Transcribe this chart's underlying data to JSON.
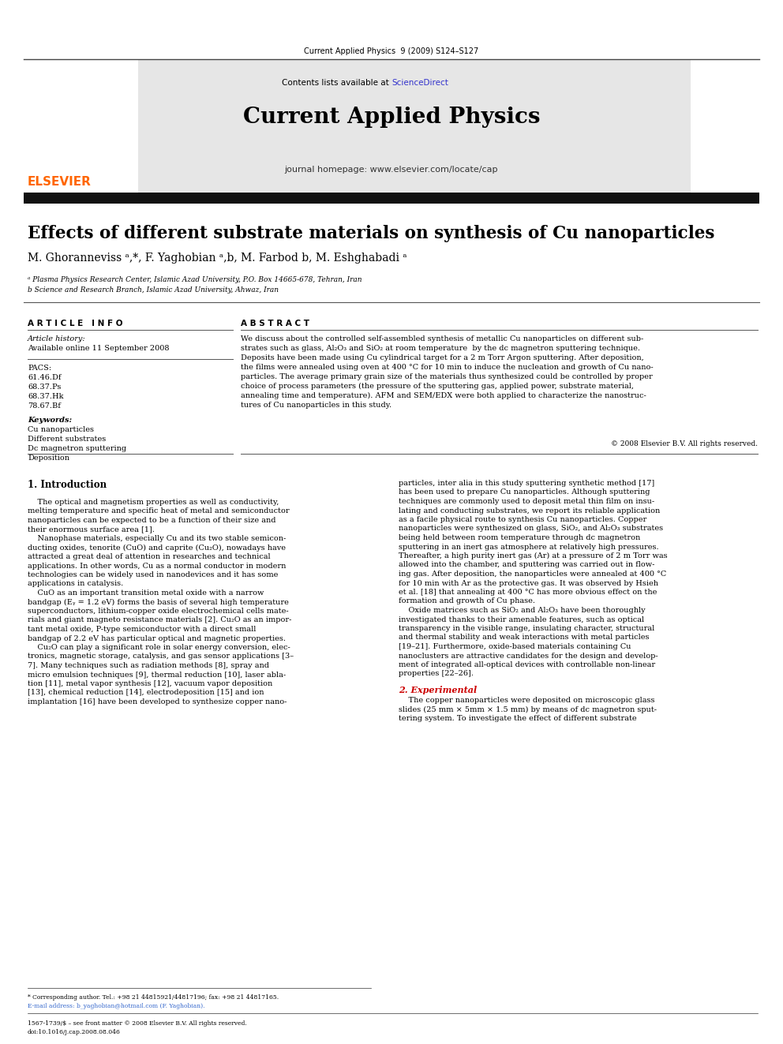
{
  "page_width": 9.92,
  "page_height": 13.23,
  "dpi": 100,
  "background_color": "#ffffff",
  "journal_header_text": "Current Applied Physics  9 (2009) S124–S127",
  "contents_text": "Contents lists available at ",
  "sciencedirect_text": "ScienceDirect",
  "sciencedirect_color": "#3333cc",
  "journal_title": "Current Applied Physics",
  "homepage_text": "journal homepage: www.elsevier.com/locate/cap",
  "article_title": "Effects of different substrate materials on synthesis of Cu nanoparticles",
  "authors": "M. Ghoranneviss ᵃ,*, F. Yaghobian ᵃ,b, M. Farbod b, M. Eshghabadi ᵃ",
  "affil_a": "ᵃ Plasma Physics Research Center, Islamic Azad University, P.O. Box 14665-678, Tehran, Iran",
  "affil_b": "b Science and Research Branch, Islamic Azad University, Ahwaz, Iran",
  "article_info_label": "A R T I C L E   I N F O",
  "abstract_label": "A B S T R A C T",
  "article_history_label": "Article history:",
  "available_online": "Available online 11 September 2008",
  "pacs_label": "PACS:",
  "pacs_codes": [
    "61.46.Df",
    "68.37.Ps",
    "68.37.Hk",
    "78.67.Bf"
  ],
  "keywords_label": "Keywords:",
  "keywords": [
    "Cu nanoparticles",
    "Different substrates",
    "Dc magnetron sputtering",
    "Deposition"
  ],
  "abstract_text": "We discuss about the controlled self-assembled synthesis of metallic Cu nanoparticles on different substrates such as glass, Al₂O₃ and SiO₂ at room temperature  by the dc magnetron sputtering technique. Deposits have been made using Cu cylindrical target for a 2 m Torr Argon sputtering. After deposition, the films were annealed using oven at 400 °C for 10 min to induce the nucleation and growth of Cu nanoparticles. The average primary grain size of the materials thus synthesized could be controlled by proper choice of process parameters (the pressure of the sputtering gas, applied power, substrate material, annealing time and temperature). AFM and SEM/EDX were both applied to characterize the nanostructures of Cu nanoparticles in this study.",
  "copyright_text": "© 2008 Elsevier B.V. All rights reserved.",
  "intro_heading": "1. Introduction",
  "intro_col1_lines": [
    "    The optical and magnetism properties as well as conductivity,",
    "melting temperature and specific heat of metal and semiconductor",
    "nanoparticles can be expected to be a function of their size and",
    "their enormous surface area [1].",
    "    Nanophase materials, especially Cu and its two stable semicon-",
    "ducting oxides, tenorite (CuO) and caprite (Cu₂O), nowadays have",
    "attracted a great deal of attention in researches and technical",
    "applications. In other words, Cu as a normal conductor in modern",
    "technologies can be widely used in nanodevices and it has some",
    "applications in catalysis.",
    "    CuO as an important transition metal oxide with a narrow",
    "bandgap (Eᵧ = 1.2 eV) forms the basis of several high temperature",
    "superconductors, lithium-copper oxide electrochemical cells mate-",
    "rials and giant magneto resistance materials [2]. Cu₂O as an impor-",
    "tant metal oxide, P-type semiconductor with a direct small",
    "bandgap of 2.2 eV has particular optical and magnetic properties.",
    "    Cu₂O can play a significant role in solar energy conversion, elec-",
    "tronics, magnetic storage, catalysis, and gas sensor applications [3–",
    "7]. Many techniques such as radiation methods [8], spray and",
    "micro emulsion techniques [9], thermal reduction [10], laser abla-",
    "tion [11], metal vapor synthesis [12], vacuum vapor deposition",
    "[13], chemical reduction [14], electrodeposition [15] and ion",
    "implantation [16] have been developed to synthesize copper nano-"
  ],
  "intro_col2_lines": [
    "particles, inter alia in this study sputtering synthetic method [17]",
    "has been used to prepare Cu nanoparticles. Although sputtering",
    "techniques are commonly used to deposit metal thin film on insu-",
    "lating and conducting substrates, we report its reliable application",
    "as a facile physical route to synthesis Cu nanoparticles. Copper",
    "nanoparticles were synthesized on glass, SiO₂, and Al₂O₃ substrates",
    "being held between room temperature through dc magnetron",
    "sputtering in an inert gas atmosphere at relatively high pressures.",
    "Thereafter, a high purity inert gas (Ar) at a pressure of 2 m Torr was",
    "allowed into the chamber, and sputtering was carried out in flow-",
    "ing gas. After deposition, the nanoparticles were annealed at 400 °C",
    "for 10 min with Ar as the protective gas. It was observed by Hsieh",
    "et al. [18] that annealing at 400 °C has more obvious effect on the",
    "formation and growth of Cu phase.",
    "    Oxide matrices such as SiO₂ and Al₂O₃ have been thoroughly",
    "investigated thanks to their amenable features, such as optical",
    "transparency in the visible range, insulating character, structural",
    "and thermal stability and weak interactions with metal particles",
    "[19–21]. Furthermore, oxide-based materials containing Cu",
    "nanoclusters are attractive candidates for the design and develop-",
    "ment of integrated all-optical devices with controllable non-linear",
    "properties [22–26]."
  ],
  "section2_heading": "2. Experimental",
  "section2_col2_lines": [
    "    The copper nanoparticles were deposited on microscopic glass",
    "slides (25 mm × 5mm × 1.5 mm) by means of dc magnetron sput-",
    "tering system. To investigate the effect of different substrate"
  ],
  "footnote_corresponding": "* Corresponding author. Tel.: +98 21 44815921/44817196; fax: +98 21 44817165.",
  "footnote_email": "E-mail address: b_yaghobian@hotmail.com (F. Yaghobian).",
  "issn_text": "1567-1739/$ – see front matter © 2008 Elsevier B.V. All rights reserved.",
  "doi_text": "doi:10.1016/j.cap.2008.08.046",
  "header_bg": "#e6e6e6",
  "thick_bar_color": "#111111",
  "elsevier_orange": "#FF6600",
  "link_blue": "#3366cc"
}
